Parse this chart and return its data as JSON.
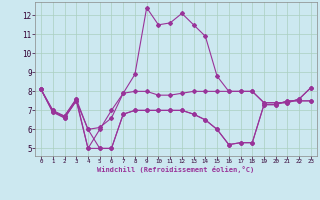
{
  "xlabel": "Windchill (Refroidissement éolien,°C)",
  "background_color": "#cce8f0",
  "grid_color": "#aacfc0",
  "line_color": "#993399",
  "xlim": [
    -0.5,
    23.5
  ],
  "ylim": [
    4.6,
    12.7
  ],
  "xticks": [
    0,
    1,
    2,
    3,
    4,
    5,
    6,
    7,
    8,
    9,
    10,
    11,
    12,
    13,
    14,
    15,
    16,
    17,
    18,
    19,
    20,
    21,
    22,
    23
  ],
  "yticks": [
    5,
    6,
    7,
    8,
    9,
    10,
    11,
    12
  ],
  "series1_y": [
    8.1,
    6.9,
    6.7,
    7.6,
    5.0,
    6.0,
    7.0,
    7.9,
    8.9,
    12.4,
    11.5,
    11.6,
    12.1,
    11.5,
    10.9,
    8.8,
    8.0,
    8.0,
    8.0,
    7.4,
    7.4,
    7.4,
    7.6,
    8.2
  ],
  "series2_y": [
    8.1,
    7.0,
    6.7,
    7.6,
    6.0,
    6.1,
    6.6,
    7.9,
    8.0,
    8.0,
    7.8,
    7.8,
    7.9,
    8.0,
    8.0,
    8.0,
    8.0,
    8.0,
    8.0,
    7.4,
    7.4,
    7.4,
    7.6,
    8.2
  ],
  "series3_y": [
    8.1,
    6.9,
    6.6,
    7.5,
    6.0,
    5.0,
    5.0,
    6.8,
    7.0,
    7.0,
    7.0,
    7.0,
    7.0,
    6.8,
    6.5,
    6.0,
    5.2,
    5.3,
    5.3,
    7.3,
    7.3,
    7.5,
    7.5,
    7.5
  ],
  "series4_y": [
    8.1,
    7.0,
    6.6,
    7.5,
    5.0,
    5.0,
    5.0,
    6.8,
    7.0,
    7.0,
    7.0,
    7.0,
    7.0,
    6.8,
    6.5,
    6.0,
    5.2,
    5.3,
    5.3,
    7.3,
    7.3,
    7.5,
    7.5,
    7.5
  ]
}
